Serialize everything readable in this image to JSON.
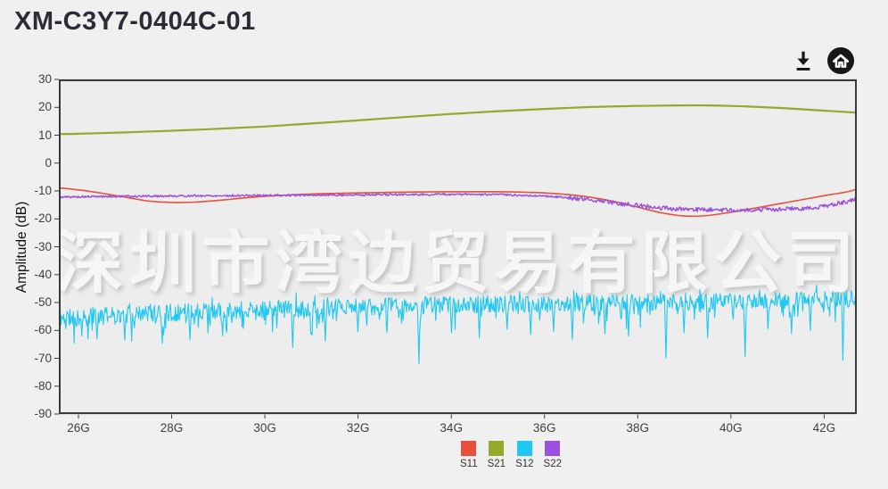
{
  "page": {
    "title": "XM-C3Y7-0404C-01"
  },
  "toolbar": {
    "icons": [
      {
        "name": "download-icon",
        "glyph": "⤓"
      },
      {
        "name": "home-icon",
        "glyph": "⌂"
      }
    ]
  },
  "watermark": {
    "text": "深圳市湾边贸易有限公司"
  },
  "colors": {
    "page_bg": "#f0f0f0",
    "plot_bg": "#ededed",
    "grid": "#cccccc",
    "axis": "#3a3a3a",
    "icon": "#171717"
  },
  "chart_data": {
    "type": "line",
    "title": "",
    "xlabel": "",
    "ylabel": "Amplitude (dB)",
    "xlim": [
      25.58,
      42.7
    ],
    "ylim": [
      -90,
      30
    ],
    "grid": true,
    "legend_position": "bottom-center",
    "xticks": [
      26,
      28,
      30,
      32,
      34,
      36,
      38,
      40,
      42
    ],
    "xtick_labels": [
      "26G",
      "28G",
      "30G",
      "32G",
      "34G",
      "36G",
      "38G",
      "40G",
      "42G"
    ],
    "yticks": [
      30,
      20,
      10,
      0,
      -10,
      -20,
      -30,
      -40,
      -50,
      -60,
      -70,
      -80,
      -90
    ],
    "ytick_labels": [
      "30",
      "20",
      "10",
      "0",
      "-10",
      "-20",
      "-30",
      "-40",
      "-50",
      "-60",
      "-70",
      "-80",
      "-90"
    ],
    "x_unit": "GHz",
    "series": [
      {
        "name": "S11",
        "color": "#e8503c",
        "style": "smooth",
        "width": 1.6,
        "x": [
          25.58,
          26,
          26.5,
          27,
          27.5,
          28,
          28.5,
          29,
          29.5,
          30,
          31,
          32,
          33,
          34,
          35,
          35.5,
          36,
          36.5,
          37,
          37.5,
          38,
          38.5,
          39,
          39.5,
          40,
          40.5,
          41,
          41.5,
          42,
          42.5,
          42.7
        ],
        "y": [
          -8.9,
          -9.6,
          -10.8,
          -12.2,
          -13.6,
          -14.1,
          -14.0,
          -13.4,
          -12.6,
          -11.9,
          -11.1,
          -10.7,
          -10.4,
          -10.3,
          -10.3,
          -10.4,
          -10.7,
          -11.3,
          -12.3,
          -13.8,
          -15.8,
          -17.8,
          -19.0,
          -18.8,
          -17.6,
          -16.2,
          -14.7,
          -13.2,
          -11.7,
          -10.3,
          -9.3
        ]
      },
      {
        "name": "S21",
        "color": "#95a92d",
        "style": "smooth",
        "width": 2.2,
        "x": [
          25.58,
          26,
          27,
          28,
          29,
          30,
          31,
          32,
          33,
          34,
          35,
          36,
          37,
          38,
          39,
          39.5,
          40,
          40.5,
          41,
          41.5,
          42,
          42.5,
          42.7
        ],
        "y": [
          10.4,
          10.5,
          11.0,
          11.6,
          12.3,
          13.1,
          14.2,
          15.3,
          16.5,
          17.6,
          18.6,
          19.4,
          20.1,
          20.5,
          20.7,
          20.7,
          20.5,
          20.2,
          19.8,
          19.3,
          18.8,
          18.3,
          18.1
        ]
      },
      {
        "name": "S12",
        "color": "#1fc8f2",
        "style": "noisy",
        "width": 1.1,
        "seed": 11,
        "points": 1150,
        "noise_db": 3.1,
        "down_prob": 0.13,
        "down_extra": 7.5,
        "up_prob": 0.04,
        "up_extra": 3.5,
        "x": [
          25.58,
          27,
          28,
          30,
          32,
          34,
          36,
          38,
          40,
          42,
          42.7
        ],
        "y": [
          -55.5,
          -54.5,
          -53.5,
          -52.5,
          -51.5,
          -50.8,
          -50.4,
          -50.0,
          -49.6,
          -49.0,
          -48.6
        ],
        "spikes": [
          {
            "x": 26.4,
            "d": 8
          },
          {
            "x": 27.0,
            "d": 9
          },
          {
            "x": 27.8,
            "d": 11
          },
          {
            "x": 28.4,
            "d": 10
          },
          {
            "x": 29.1,
            "d": 9
          },
          {
            "x": 30.6,
            "d": 14
          },
          {
            "x": 31.3,
            "d": 12
          },
          {
            "x": 32.0,
            "d": 9
          },
          {
            "x": 33.3,
            "d": 21
          },
          {
            "x": 34.0,
            "d": 10
          },
          {
            "x": 34.6,
            "d": 12
          },
          {
            "x": 35.2,
            "d": 9
          },
          {
            "x": 35.7,
            "d": 11
          },
          {
            "x": 36.2,
            "d": 10
          },
          {
            "x": 36.6,
            "d": 13
          },
          {
            "x": 37.3,
            "d": 11
          },
          {
            "x": 37.8,
            "d": 12
          },
          {
            "x": 38.6,
            "d": 20
          },
          {
            "x": 39.0,
            "d": 11
          },
          {
            "x": 39.5,
            "d": 13
          },
          {
            "x": 40.3,
            "d": 20
          },
          {
            "x": 40.8,
            "d": 10
          },
          {
            "x": 41.3,
            "d": 12
          },
          {
            "x": 41.7,
            "d": 11
          },
          {
            "x": 42.4,
            "d": 22
          }
        ]
      },
      {
        "name": "S22",
        "color": "#9b50e0",
        "style": "noisy",
        "width": 1.5,
        "seed": 5,
        "points": 900,
        "noise_db": 0.35,
        "noise_db_hi": 0.75,
        "noise_hi_from": 36.5,
        "x": [
          25.58,
          26,
          27,
          28,
          29,
          30,
          31,
          32,
          33,
          34,
          35,
          36,
          36.5,
          37,
          37.5,
          38,
          38.5,
          39,
          39.5,
          40,
          40.5,
          41,
          41.5,
          42,
          42.5,
          42.7
        ],
        "y": [
          -12.2,
          -12.1,
          -11.9,
          -11.8,
          -11.7,
          -11.6,
          -11.5,
          -11.4,
          -11.3,
          -11.2,
          -11.3,
          -11.8,
          -12.4,
          -13.2,
          -14.2,
          -15.2,
          -16.1,
          -16.6,
          -16.8,
          -16.8,
          -16.7,
          -16.6,
          -16.3,
          -15.4,
          -13.8,
          -12.7
        ]
      }
    ]
  },
  "legend": {
    "items": [
      {
        "label": "S11",
        "color": "#e8503c"
      },
      {
        "label": "S21",
        "color": "#95a92d"
      },
      {
        "label": "S12",
        "color": "#1fc8f2"
      },
      {
        "label": "S22",
        "color": "#9b50e0"
      }
    ]
  }
}
